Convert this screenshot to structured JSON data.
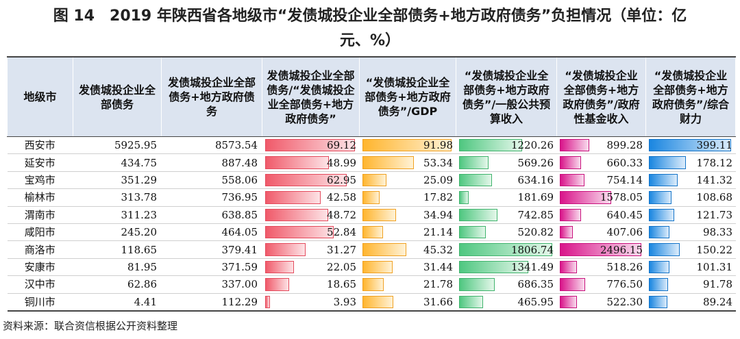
{
  "title": {
    "line1": "图 14　2019 年陕西省各地级市“发债城投企业全部债务+地方政府债务”负担情况（单位：亿",
    "line2": "元、%）"
  },
  "headers": [
    "地级市",
    "发债城投企业全部债务",
    "发债城投企业全部债务+地方政府债务",
    "发债城投企业全部债务/“发债城投企业全部债务+地方政府债务”",
    "“发债城投企业全部债务+地方政府债务”/GDP",
    "“发债城投企业全部债务+地方政府债务”/一般公共预算收入",
    "“发债城投企业全部债务+地方政府债务”/政府性基金收入",
    "“发债城投企业全部债务+地方政府债务”/综合财力"
  ],
  "rows": [
    {
      "city": "西安市",
      "c1": "5925.95",
      "c2": "8573.54",
      "c3": "69.12",
      "c4": "91.98",
      "c5": "1220.26",
      "c6": "899.28",
      "c7": "399.11"
    },
    {
      "city": "延安市",
      "c1": "434.75",
      "c2": "887.48",
      "c3": "48.99",
      "c4": "53.34",
      "c5": "569.26",
      "c6": "660.33",
      "c7": "178.12"
    },
    {
      "city": "宝鸡市",
      "c1": "351.29",
      "c2": "558.06",
      "c3": "62.95",
      "c4": "25.09",
      "c5": "634.16",
      "c6": "754.14",
      "c7": "141.32"
    },
    {
      "city": "榆林市",
      "c1": "313.78",
      "c2": "736.95",
      "c3": "42.58",
      "c4": "17.82",
      "c5": "181.69",
      "c6": "1578.05",
      "c7": "108.68"
    },
    {
      "city": "渭南市",
      "c1": "311.23",
      "c2": "638.85",
      "c3": "48.72",
      "c4": "34.94",
      "c5": "742.85",
      "c6": "640.45",
      "c7": "121.73"
    },
    {
      "city": "咸阳市",
      "c1": "245.20",
      "c2": "464.05",
      "c3": "52.84",
      "c4": "21.14",
      "c5": "520.82",
      "c6": "407.06",
      "c7": "98.33"
    },
    {
      "city": "商洛市",
      "c1": "118.65",
      "c2": "379.41",
      "c3": "31.27",
      "c4": "45.32",
      "c5": "1806.74",
      "c6": "2496.15",
      "c7": "150.22"
    },
    {
      "city": "安康市",
      "c1": "81.95",
      "c2": "371.59",
      "c3": "22.05",
      "c4": "31.44",
      "c5": "1341.49",
      "c6": "518.26",
      "c7": "101.31"
    },
    {
      "city": "汉中市",
      "c1": "62.86",
      "c2": "337.00",
      "c3": "18.65",
      "c4": "21.78",
      "c5": "686.35",
      "c6": "776.50",
      "c7": "91.78"
    },
    {
      "city": "铜川市",
      "c1": "4.41",
      "c2": "112.29",
      "c3": "3.93",
      "c4": "31.66",
      "c5": "465.95",
      "c6": "522.30",
      "c7": "89.24"
    }
  ],
  "bar_colors": {
    "c3": "#f05a6a",
    "c4": "#ffb52e",
    "c5": "#4fc780",
    "c6": "#d9148a",
    "c7": "#1a86e0"
  },
  "source": "资料来源：联合资信根据公开资料整理"
}
